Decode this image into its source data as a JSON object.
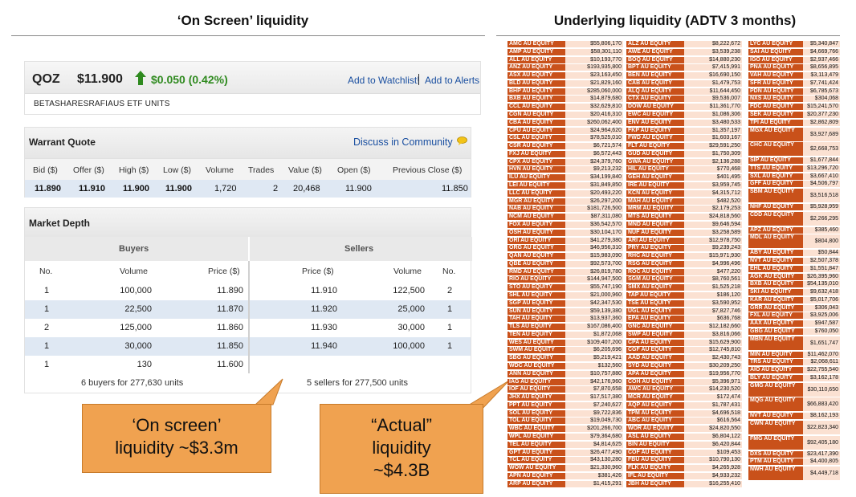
{
  "headers": {
    "left": "‘On Screen’ liquidity",
    "right": "Underlying liquidity (ADTV 3 months)"
  },
  "quote": {
    "code": "QOZ",
    "price": "$11.900",
    "change": "$0.050 (0.42%)",
    "change_color": "#2f8a1f",
    "watchlist_link": "Add to Watchlist!",
    "separator": "|",
    "alerts_link": "Add to Alerts",
    "name": "BETASHARESRAFIAUS ETF UNITS"
  },
  "warrant_quote": {
    "title": "Warrant Quote",
    "discuss_link": "Discuss in Community",
    "columns": [
      "Bid ($)",
      "Offer ($)",
      "High ($)",
      "Low ($)",
      "Volume",
      "Trades",
      "Value ($)",
      "Open ($)",
      "Previous Close ($)"
    ],
    "values": [
      "11.890",
      "11.910",
      "11.900",
      "11.900",
      "1,720",
      "2",
      "20,468",
      "11.900",
      "11.850"
    ]
  },
  "market_depth": {
    "title": "Market Depth",
    "buyers_label": "Buyers",
    "sellers_label": "Sellers",
    "buy_columns": [
      "No.",
      "Volume",
      "Price ($)"
    ],
    "sell_columns": [
      "Price ($)",
      "Volume",
      "No."
    ],
    "buys": [
      {
        "no": "1",
        "volume": "100,000",
        "price": "11.890"
      },
      {
        "no": "1",
        "volume": "22,500",
        "price": "11.870"
      },
      {
        "no": "2",
        "volume": "125,000",
        "price": "11.860"
      },
      {
        "no": "1",
        "volume": "30,000",
        "price": "11.850"
      },
      {
        "no": "1",
        "volume": "130",
        "price": "11.600"
      }
    ],
    "sells": [
      {
        "price": "11.910",
        "volume": "122,500",
        "no": "2"
      },
      {
        "price": "11.920",
        "volume": "25,000",
        "no": "1"
      },
      {
        "price": "11.930",
        "volume": "30,000",
        "no": "1"
      },
      {
        "price": "11.940",
        "volume": "100,000",
        "no": "1"
      }
    ],
    "buyers_summary": "6 buyers for 277,630 units",
    "sellers_summary": "5 sellers for 277,500 units"
  },
  "callouts": {
    "on_screen": [
      "‘On screen’",
      "liquidity ~$3.3m"
    ],
    "actual": [
      "“Actual”",
      "liquidity",
      "~$4.3B"
    ]
  },
  "adtv": {
    "columns": [
      [
        [
          "AMC AU EQUITY",
          "$55,806,170"
        ],
        [
          "AMP AU EQUITY",
          "$58,301,110"
        ],
        [
          "ALL AU EQUITY",
          "$10,193,770"
        ],
        [
          "ANZ AU EQUITY",
          "$193,935,800"
        ],
        [
          "ASX AU EQUITY",
          "$23,163,450"
        ],
        [
          "BLD AU EQUITY",
          "$21,829,160"
        ],
        [
          "BHP AU EQUITY",
          "$285,060,000"
        ],
        [
          "BXB AU EQUITY",
          "$14,879,680"
        ],
        [
          "CCL AU EQUITY",
          "$32,629,810"
        ],
        [
          "CGN AU EQUITY",
          "$20,416,310"
        ],
        [
          "CBA AU EQUITY",
          "$260,062,400"
        ],
        [
          "CPU AU EQUITY",
          "$24,964,620"
        ],
        [
          "CSL AU EQUITY",
          "$78,525,010"
        ],
        [
          "CSR AU EQUITY",
          "$6,721,574"
        ],
        [
          "FXJ AU EQUITY",
          "$6,572,443"
        ],
        [
          "CPX AU EQUITY",
          "$24,379,760"
        ],
        [
          "HVN AU EQUITY",
          "$9,213,232"
        ],
        [
          "ILU AU EQUITY",
          "$34,199,840"
        ],
        [
          "LEI AU EQUITY",
          "$31,849,850"
        ],
        [
          "LLC AU EQUITY",
          "$20,493,220"
        ],
        [
          "MGR AU EQUITY",
          "$26,297,200"
        ],
        [
          "NAB AU EQUITY",
          "$181,726,500"
        ],
        [
          "NCM AU EQUITY",
          "$87,311,080"
        ],
        [
          "FOX AU EQUITY",
          "$36,542,570"
        ],
        [
          "OSH AU EQUITY",
          "$30,104,170"
        ],
        [
          "ORI AU EQUITY",
          "$41,279,380"
        ],
        [
          "ORG AU EQUITY",
          "$46,956,310"
        ],
        [
          "QAN AU EQUITY",
          "$15,983,090"
        ],
        [
          "QBE AU EQUITY",
          "$92,573,700"
        ],
        [
          "RMD AU EQUITY",
          "$26,819,780"
        ],
        [
          "RIO AU EQUITY",
          "$144,947,500"
        ],
        [
          "STO AU EQUITY",
          "$55,747,190"
        ],
        [
          "SHL AU EQUITY",
          "$21,000,960"
        ],
        [
          "SGP AU EQUITY",
          "$42,347,530"
        ],
        [
          "SUN AU EQUITY",
          "$59,139,380"
        ],
        [
          "TAH AU EQUITY",
          "$13,937,360"
        ],
        [
          "TLS AU EQUITY",
          "$167,086,400"
        ],
        [
          "TEN AU EQUITY",
          "$1,872,068"
        ],
        [
          "WES AU EQUITY",
          "$109,407,200"
        ],
        [
          "SWM AU EQUITY",
          "$6,205,696"
        ],
        [
          "SBG AU EQUITY",
          "$5,219,421"
        ],
        [
          "WDC AU EQUITY",
          "$132,560"
        ],
        [
          "ANN AU EQUITY",
          "$10,757,880"
        ],
        [
          "IAG AU EQUITY",
          "$42,176,960"
        ],
        [
          "IOF AU EQUITY",
          "$7,870,658"
        ],
        [
          "JHX AU EQUITY",
          "$17,517,380"
        ],
        [
          "PPT AU EQUITY",
          "$7,240,627"
        ],
        [
          "SOL AU EQUITY",
          "$9,722,836"
        ],
        [
          "TOL AU EQUITY",
          "$19,049,730"
        ],
        [
          "WBC AU EQUITY",
          "$201,266,700"
        ],
        [
          "WPL AU EQUITY",
          "$79,364,680"
        ],
        [
          "TEL AU EQUITY",
          "$4,814,625"
        ],
        [
          "GPT AU EQUITY",
          "$26,477,490"
        ],
        [
          "TCL AU EQUITY",
          "$43,130,280"
        ],
        [
          "WOW AU EQUITY",
          "$21,330,960"
        ],
        [
          "APN AU EQUITY",
          "$381,426"
        ],
        [
          "ARP AU EQUITY",
          "$1,415,291"
        ]
      ],
      [
        [
          "ALZ AU EQUITY",
          "$8,222,672"
        ],
        [
          "AWE AU EQUITY",
          "$3,539,238"
        ],
        [
          "BOQ AU EQUITY",
          "$14,880,230"
        ],
        [
          "BPT AU EQUITY",
          "$7,415,991"
        ],
        [
          "BEN AU EQUITY",
          "$16,690,150"
        ],
        [
          "CAB AU EQUITY",
          "$1,479,753"
        ],
        [
          "ALQ AU EQUITY",
          "$11,644,450"
        ],
        [
          "CTX AU EQUITY",
          "$9,536,007"
        ],
        [
          "DOW AU EQUITY",
          "$11,361,770"
        ],
        [
          "EWC AU EQUITY",
          "$1,086,306"
        ],
        [
          "ENV AU EQUITY",
          "$3,480,533"
        ],
        [
          "FKP AU EQUITY",
          "$1,357,197"
        ],
        [
          "FWD AU EQUITY",
          "$1,603,167"
        ],
        [
          "FLT AU EQUITY",
          "$29,591,250"
        ],
        [
          "GUD AU EQUITY",
          "$1,750,309"
        ],
        [
          "GWA AU EQUITY",
          "$2,136,288"
        ],
        [
          "HIL AU EQUITY",
          "$770,468"
        ],
        [
          "GEH AU EQUITY",
          "$401,495"
        ],
        [
          "IRE AU EQUITY",
          "$3,959,745"
        ],
        [
          "KCN AU EQUITY",
          "$4,315,712"
        ],
        [
          "MAH AU EQUITY",
          "$482,520"
        ],
        [
          "MRM AU EQUITY",
          "$2,179,253"
        ],
        [
          "MTS AU EQUITY",
          "$24,818,560"
        ],
        [
          "MND AU EQUITY",
          "$9,646,594"
        ],
        [
          "NUF AU EQUITY",
          "$3,258,589"
        ],
        [
          "ARI AU EQUITY",
          "$12,978,750"
        ],
        [
          "PRY AU EQUITY",
          "$9,239,243"
        ],
        [
          "RHC AU EQUITY",
          "$15,971,930"
        ],
        [
          "RSG AU EQUITY",
          "$4,996,496"
        ],
        [
          "ROC AU EQUITY",
          "$477,220"
        ],
        [
          "SGM AU EQUITY",
          "$8,760,561"
        ],
        [
          "SMX AU EQUITY",
          "$1,525,218"
        ],
        [
          "TAP AU EQUITY",
          "$186,120"
        ],
        [
          "TSE AU EQUITY",
          "$3,590,952"
        ],
        [
          "UGL AU EQUITY",
          "$7,827,746"
        ],
        [
          "EPA AU EQUITY",
          "$636,768"
        ],
        [
          "GNC AU EQUITY",
          "$12,182,660"
        ],
        [
          "SWP AU EQUITY",
          "$3,816,066"
        ],
        [
          "CPA AU EQUITY",
          "$15,629,900"
        ],
        [
          "CGF AU EQUITY",
          "$12,745,810"
        ],
        [
          "AAD AU EQUITY",
          "$2,430,743"
        ],
        [
          "SYD AU EQUITY",
          "$30,209,250"
        ],
        [
          "APA AU EQUITY",
          "$19,956,770"
        ],
        [
          "COH AU EQUITY",
          "$5,396,971"
        ],
        [
          "AWC AU EQUITY",
          "$14,230,520"
        ],
        [
          "MCR AU EQUITY",
          "$172,474"
        ],
        [
          "AQP AU EQUITY",
          "$1,787,431"
        ],
        [
          "TPM AU EQUITY",
          "$4,696,518"
        ],
        [
          "ABC AU EQUITY",
          "$616,564"
        ],
        [
          "WOR AU EQUITY",
          "$24,820,550"
        ],
        [
          "ASL AU EQUITY",
          "$6,804,122"
        ],
        [
          "BIN AU EQUITY",
          "$6,420,844"
        ],
        [
          "COF AU EQUITY",
          "$109,453"
        ],
        [
          "FBU AU EQUITY",
          "$10,790,130"
        ],
        [
          "FLK AU EQUITY",
          "$4,265,928"
        ],
        [
          "IFL AU EQUITY",
          "$4,933,232"
        ],
        [
          "JBH AU EQUITY",
          "$16,255,410"
        ]
      ],
      [
        [
          "LYC AU EQUITY",
          "$5,340,847",
          1
        ],
        [
          "SAI AU EQUITY",
          "$4,669,766",
          1
        ],
        [
          "IGO AU EQUITY",
          "$2,937,466",
          1
        ],
        [
          "PNA AU EQUITY",
          "$8,656,895",
          1
        ],
        [
          "VAH AU EQUITY",
          "$3,113,479",
          1
        ],
        [
          "SFR AU EQUITY",
          "$7,741,424",
          1
        ],
        [
          "PDN AU EQUITY",
          "$6,785,673",
          1
        ],
        [
          "NXS AU EQUITY",
          "$304,068",
          1
        ],
        [
          "FDC AU EQUITY",
          "$15,241,570",
          1
        ],
        [
          "SEK AU EQUITY",
          "$20,377,230",
          1
        ],
        [
          "TPI AU EQUITY",
          "$2,862,809",
          1
        ],
        [
          "MGX AU EQUITY",
          "$3,927,689",
          2
        ],
        [
          "CHC AU EQUITY",
          "$2,668,753",
          2
        ],
        [
          "SIP AU EQUITY",
          "$1,677,844",
          1
        ],
        [
          "TTS AU EQUITY",
          "$13,296,720",
          1
        ],
        [
          "SXL AU EQUITY",
          "$3,667,410",
          1
        ],
        [
          "GFF AU EQUITY",
          "$4,506,797",
          1
        ],
        [
          "SBM AU EQUITY",
          "$3,516,518",
          2
        ],
        [
          "NHF AU EQUITY",
          "$5,928,959",
          1
        ],
        [
          "CDD AU EQUITY",
          "$2,266,295",
          2
        ],
        [
          "APZ AU EQUITY",
          "$385,460",
          1
        ],
        [
          "MDL AU EQUITY",
          "$804,800",
          2
        ],
        [
          "ABY AU EQUITY",
          "$50,844",
          1
        ],
        [
          "NVT AU EQUITY",
          "$2,507,378",
          1
        ],
        [
          "EHL AU EQUITY",
          "$1,551,847",
          1
        ],
        [
          "AGK AU EQUITY",
          "$26,395,960",
          1
        ],
        [
          "BXB AU EQUITY",
          "$54,135,010",
          1
        ],
        [
          "SKI AU EQUITY",
          "$9,632,418",
          1
        ],
        [
          "KAR AU EQUITY",
          "$5,017,706",
          1
        ],
        [
          "GRR AU EQUITY",
          "$306,043",
          1
        ],
        [
          "FXL AU EQUITY",
          "$3,925,006",
          1
        ],
        [
          "AAX AU EQUITY",
          "$947,587",
          1
        ],
        [
          "GBG AU EQUITY",
          "$760,050",
          1
        ],
        [
          "MBN AU EQUITY",
          "$1,651,747",
          2
        ],
        [
          "MIN AU EQUITY",
          "$11,462,070",
          1
        ],
        [
          "TRS AU EQUITY",
          "$2,068,611",
          1
        ],
        [
          "AIO AU EQUITY",
          "$22,755,540",
          1
        ],
        [
          "BLY AU EQUITY",
          "$3,162,178",
          1
        ],
        [
          "GMG AU EQUITY",
          "$30,110,650",
          2
        ],
        [
          "MQG AU EQUITY",
          "$66,883,420",
          2
        ],
        [
          "NVT AU EQUITY",
          "$8,162,193",
          1
        ],
        [
          "CWN AU EQUITY",
          "$22,823,340",
          2
        ],
        [
          "FMG AU EQUITY",
          "$92,405,180",
          2
        ],
        [
          "DXS AU EQUITY",
          "$23,417,390",
          1
        ],
        [
          "PTM AU EQUITY",
          "$4,400,805",
          1
        ],
        [
          "NWH AU EQUITY",
          "$4,449,718",
          2
        ]
      ]
    ]
  }
}
